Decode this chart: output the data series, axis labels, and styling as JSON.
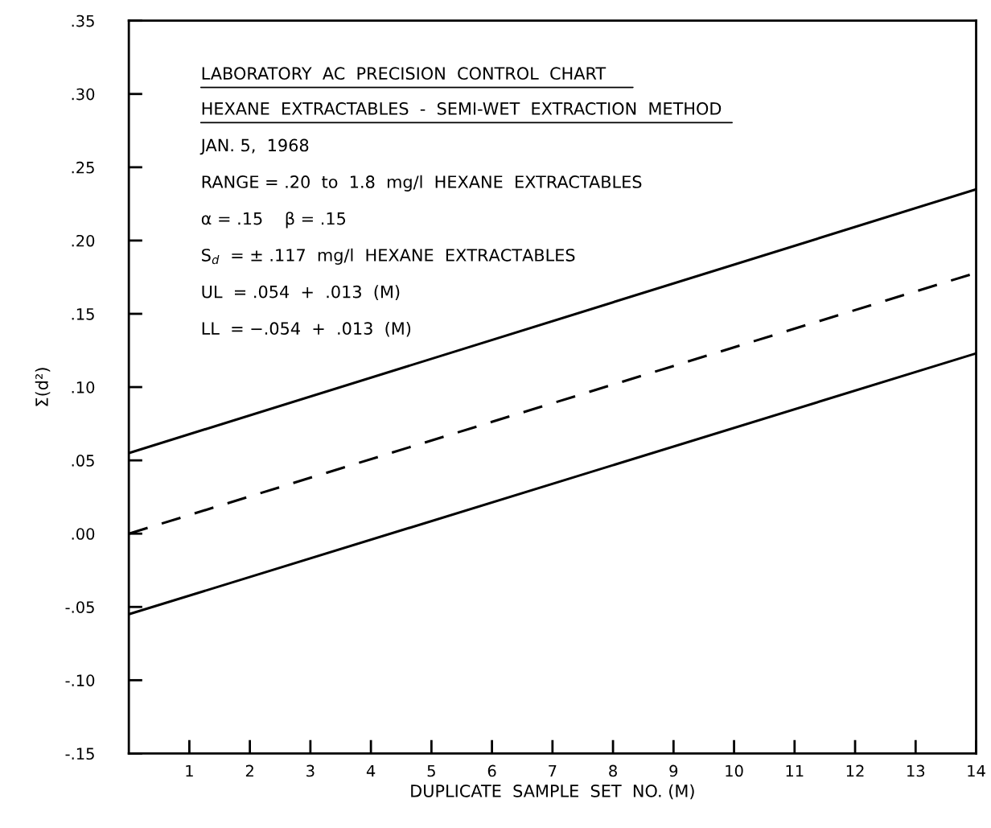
{
  "chart_data": {
    "type": "line",
    "title": "LABORATORY  AC  PRECISION  CONTROL  CHART",
    "subtitle": "HEXANE  EXTRACTABLES  -  SEMI-WET  EXTRACTION  METHOD",
    "xlabel": "DUPLICATE  SAMPLE  SET  NO. (M)",
    "ylabel": "Σ(d²)",
    "annotations": [
      "JAN. 5,  1968",
      "RANGE = .20  to  1.8  mg/l  HEXANE  EXTRACTABLES",
      "α = .15    β = .15",
      "S$_{d}$  = ± .117  mg/l  HEXANE  EXTRACTABLES",
      "UL  = .054  +  .013  (M)",
      "LL  = −.054  +  .013  (M)"
    ],
    "x": [
      0,
      14
    ],
    "series": [
      {
        "color": "#000000",
        "line_style": "solid",
        "values": [
          0.055,
          0.235
        ]
      },
      {
        "color": "#000000",
        "line_style": "dashed",
        "values": [
          0,
          0.178
        ]
      },
      {
        "color": "#000000",
        "line_style": "solid",
        "values": [
          -0.055,
          0.123
        ]
      }
    ],
    "xlim": [
      0,
      14
    ],
    "ylim": [
      -0.15,
      0.35
    ],
    "xticks": [
      1,
      2,
      3,
      4,
      5,
      6,
      7,
      8,
      9,
      10,
      11,
      12,
      13,
      14
    ],
    "yticks": [
      {
        "value": -0.15,
        "label": "-.15"
      },
      {
        "value": -0.1,
        "label": "-.10"
      },
      {
        "value": -0.05,
        "label": "-.05"
      },
      {
        "value": 0,
        "label": ".00"
      },
      {
        "value": 0.05,
        "label": ".05"
      },
      {
        "value": 0.1,
        "label": ".10"
      },
      {
        "value": 0.15,
        "label": ".15"
      },
      {
        "value": 0.2,
        "label": ".20"
      },
      {
        "value": 0.25,
        "label": ".25"
      },
      {
        "value": 0.3,
        "label": ".30"
      },
      {
        "value": 0.35,
        "label": ".35"
      }
    ],
    "grid": false,
    "marker": "none"
  }
}
